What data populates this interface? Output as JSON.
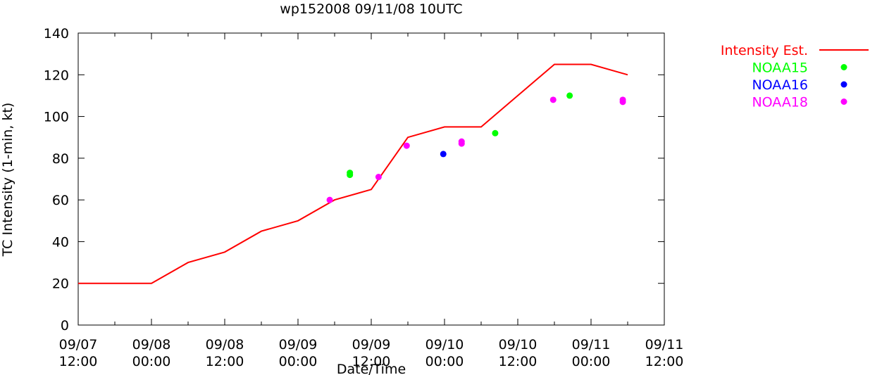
{
  "chart_data": {
    "type": "line",
    "title": "wp152008 09/11/08 10UTC",
    "xlabel": "Date/Time",
    "ylabel": "TC Intensity (1-min, kt)",
    "x_unit": "hours since 09/07 12:00",
    "xlim": [
      0,
      96
    ],
    "ylim": [
      0,
      140
    ],
    "grid": false,
    "legend_position": "outside-right",
    "x_ticks": [
      {
        "x": 0,
        "line1": "09/07",
        "line2": "12:00"
      },
      {
        "x": 12,
        "line1": "09/08",
        "line2": "00:00"
      },
      {
        "x": 24,
        "line1": "09/08",
        "line2": "12:00"
      },
      {
        "x": 36,
        "line1": "09/09",
        "line2": "00:00"
      },
      {
        "x": 48,
        "line1": "09/09",
        "line2": "12:00"
      },
      {
        "x": 60,
        "line1": "09/10",
        "line2": "00:00"
      },
      {
        "x": 72,
        "line1": "09/10",
        "line2": "12:00"
      },
      {
        "x": 84,
        "line1": "09/11",
        "line2": "00:00"
      },
      {
        "x": 96,
        "line1": "09/11",
        "line2": "12:00"
      }
    ],
    "y_ticks": [
      "0",
      "20",
      "40",
      "60",
      "80",
      "100",
      "120",
      "140"
    ],
    "series": [
      {
        "name": "Intensity Est.",
        "kind": "line",
        "color": "#ff0000",
        "points": [
          [
            0,
            20
          ],
          [
            12,
            20
          ],
          [
            18,
            30
          ],
          [
            24,
            35
          ],
          [
            30,
            45
          ],
          [
            36,
            50
          ],
          [
            42,
            60
          ],
          [
            48,
            65
          ],
          [
            54,
            90
          ],
          [
            60,
            95
          ],
          [
            66,
            95
          ],
          [
            72,
            110
          ],
          [
            78,
            125
          ],
          [
            84,
            125
          ],
          [
            90,
            120
          ]
        ]
      },
      {
        "name": "NOAA15",
        "kind": "points",
        "color": "#00ff00",
        "points": [
          [
            44.5,
            72
          ],
          [
            44.5,
            73
          ],
          [
            68.3,
            92
          ],
          [
            80.5,
            110
          ]
        ]
      },
      {
        "name": "NOAA16",
        "kind": "points",
        "color": "#0000ff",
        "points": [
          [
            59.8,
            82
          ]
        ]
      },
      {
        "name": "NOAA18",
        "kind": "points",
        "color": "#ff00ff",
        "points": [
          [
            41.2,
            60
          ],
          [
            49.2,
            71
          ],
          [
            53.8,
            86
          ],
          [
            62.8,
            87
          ],
          [
            62.8,
            88
          ],
          [
            77.8,
            108
          ],
          [
            89.2,
            107
          ],
          [
            89.2,
            108
          ]
        ]
      }
    ]
  }
}
